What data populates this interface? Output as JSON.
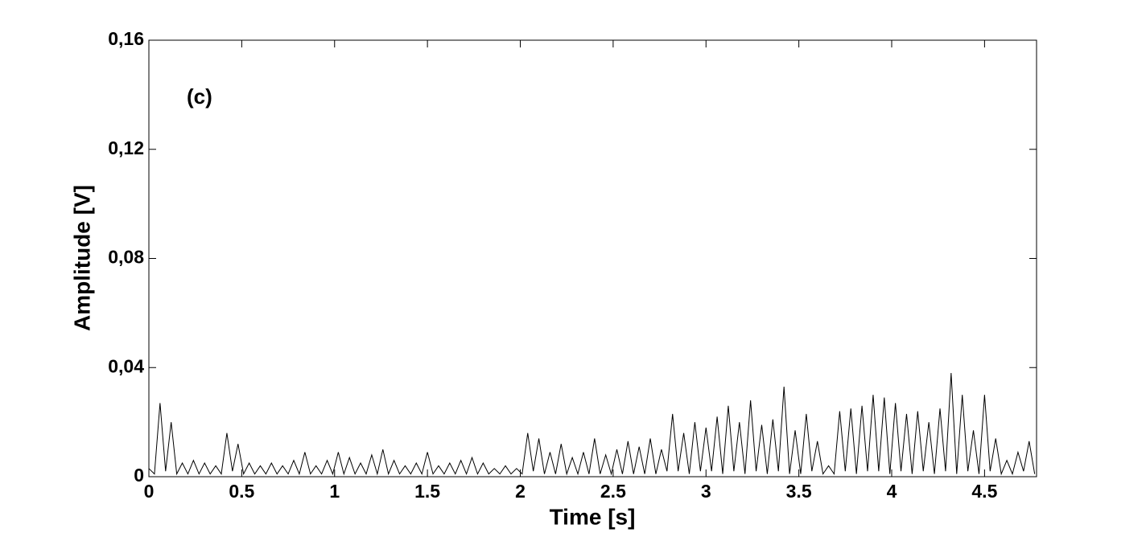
{
  "chart_data": {
    "type": "line",
    "annotation": "(c)",
    "x_label": "Time [s]",
    "y_label": "Amplitude [V]",
    "x": [
      0,
      0.03,
      0.06,
      0.09,
      0.12,
      0.15,
      0.18,
      0.21,
      0.24,
      0.27,
      0.3,
      0.33,
      0.36,
      0.39,
      0.42,
      0.45,
      0.48,
      0.51,
      0.54,
      0.57,
      0.6,
      0.63,
      0.66,
      0.69,
      0.72,
      0.75,
      0.78,
      0.81,
      0.84,
      0.87,
      0.9,
      0.93,
      0.96,
      0.99,
      1.02,
      1.05,
      1.08,
      1.11,
      1.14,
      1.17,
      1.2,
      1.23,
      1.26,
      1.29,
      1.32,
      1.35,
      1.38,
      1.41,
      1.44,
      1.47,
      1.5,
      1.53,
      1.56,
      1.59,
      1.62,
      1.65,
      1.68,
      1.71,
      1.74,
      1.77,
      1.8,
      1.83,
      1.86,
      1.89,
      1.92,
      1.95,
      1.98,
      2.01,
      2.04,
      2.07,
      2.1,
      2.13,
      2.16,
      2.19,
      2.22,
      2.25,
      2.28,
      2.31,
      2.34,
      2.37,
      2.4,
      2.43,
      2.46,
      2.49,
      2.52,
      2.55,
      2.58,
      2.61,
      2.64,
      2.67,
      2.7,
      2.73,
      2.76,
      2.79,
      2.82,
      2.85,
      2.88,
      2.91,
      2.94,
      2.97,
      3.0,
      3.03,
      3.06,
      3.09,
      3.12,
      3.15,
      3.18,
      3.21,
      3.24,
      3.27,
      3.3,
      3.33,
      3.36,
      3.39,
      3.42,
      3.45,
      3.48,
      3.51,
      3.54,
      3.57,
      3.6,
      3.63,
      3.66,
      3.69,
      3.72,
      3.75,
      3.78,
      3.81,
      3.84,
      3.87,
      3.9,
      3.93,
      3.96,
      3.99,
      4.02,
      4.05,
      4.08,
      4.11,
      4.14,
      4.17,
      4.2,
      4.23,
      4.26,
      4.29,
      4.32,
      4.35,
      4.38,
      4.41,
      4.44,
      4.47,
      4.5,
      4.53,
      4.56,
      4.59,
      4.62,
      4.65,
      4.68,
      4.71,
      4.74,
      4.77
    ],
    "values": [
      0.003,
      0.001,
      0.027,
      0.002,
      0.02,
      0.001,
      0.005,
      0.001,
      0.006,
      0.001,
      0.005,
      0.001,
      0.004,
      0.001,
      0.016,
      0.002,
      0.012,
      0.001,
      0.005,
      0.001,
      0.004,
      0.001,
      0.005,
      0.001,
      0.004,
      0.001,
      0.006,
      0.001,
      0.009,
      0.001,
      0.004,
      0.001,
      0.006,
      0.001,
      0.009,
      0.001,
      0.007,
      0.001,
      0.005,
      0.001,
      0.008,
      0.001,
      0.01,
      0.001,
      0.006,
      0.001,
      0.004,
      0.001,
      0.005,
      0.001,
      0.009,
      0.001,
      0.004,
      0.001,
      0.005,
      0.001,
      0.006,
      0.001,
      0.007,
      0.001,
      0.005,
      0.001,
      0.003,
      0.001,
      0.004,
      0.001,
      0.003,
      0.001,
      0.016,
      0.002,
      0.014,
      0.001,
      0.009,
      0.001,
      0.012,
      0.001,
      0.007,
      0.001,
      0.009,
      0.001,
      0.014,
      0.001,
      0.008,
      0.001,
      0.01,
      0.001,
      0.013,
      0.001,
      0.011,
      0.001,
      0.014,
      0.001,
      0.01,
      0.002,
      0.023,
      0.002,
      0.016,
      0.001,
      0.02,
      0.002,
      0.018,
      0.002,
      0.022,
      0.001,
      0.026,
      0.002,
      0.02,
      0.001,
      0.028,
      0.002,
      0.019,
      0.001,
      0.021,
      0.002,
      0.033,
      0.001,
      0.017,
      0.001,
      0.023,
      0.002,
      0.013,
      0.001,
      0.004,
      0.001,
      0.024,
      0.002,
      0.025,
      0.001,
      0.026,
      0.002,
      0.03,
      0.002,
      0.029,
      0.001,
      0.027,
      0.002,
      0.023,
      0.001,
      0.024,
      0.002,
      0.02,
      0.001,
      0.025,
      0.002,
      0.038,
      0.001,
      0.03,
      0.002,
      0.017,
      0.001,
      0.03,
      0.002,
      0.014,
      0.001,
      0.006,
      0.001,
      0.009,
      0.002,
      0.013,
      0.001
    ],
    "color": "#000000",
    "xlim": [
      0,
      4.78
    ],
    "xticks": [
      0,
      0.5,
      1,
      1.5,
      2,
      2.5,
      3,
      3.5,
      4,
      4.5
    ],
    "ylim": [
      0,
      0.16
    ],
    "yticks": [
      0,
      {
        "value": 0.04,
        "label": "0,04"
      },
      {
        "value": 0.08,
        "label": "0,08"
      },
      {
        "value": 0.12,
        "label": "0,12"
      },
      {
        "value": 0.16,
        "label": "0,16"
      }
    ]
  }
}
